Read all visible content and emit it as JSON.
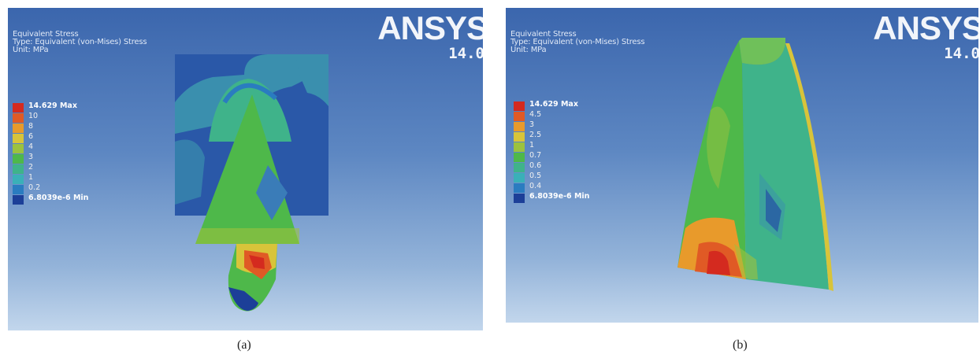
{
  "panels": [
    {
      "id": "a",
      "brand": "ANSYS",
      "version": "14.0",
      "info": [
        "Equivalent Stress",
        "Type: Equivalent (von-Mises) Stress",
        "Unit: MPa"
      ],
      "legend": [
        {
          "label": "14.629 Max",
          "color": "#d42a1f"
        },
        {
          "label": "10",
          "color": "#e05a25"
        },
        {
          "label": "8",
          "color": "#e89a2b"
        },
        {
          "label": "6",
          "color": "#d8c43a"
        },
        {
          "label": "4",
          "color": "#9cc23e"
        },
        {
          "label": "3",
          "color": "#4eb84a"
        },
        {
          "label": "2",
          "color": "#3fb38a"
        },
        {
          "label": "1",
          "color": "#3ab0b8"
        },
        {
          "label": "0.2",
          "color": "#2a7cc0"
        },
        {
          "label": "6.8039e-6 Min",
          "color": "#1c3f98"
        }
      ],
      "caption": "(a)"
    },
    {
      "id": "b",
      "brand": "ANSYS",
      "version": "14.0",
      "info": [
        "Equivalent Stress",
        "Type: Equivalent (von-Mises) Stress",
        "Unit: MPa"
      ],
      "legend": [
        {
          "label": "14.629 Max",
          "color": "#d42a1f"
        },
        {
          "label": "4.5",
          "color": "#e05a25"
        },
        {
          "label": "3",
          "color": "#e89a2b"
        },
        {
          "label": "2.5",
          "color": "#d8c43a"
        },
        {
          "label": "1",
          "color": "#9cc23e"
        },
        {
          "label": "0.7",
          "color": "#4eb84a"
        },
        {
          "label": "0.6",
          "color": "#3fb38a"
        },
        {
          "label": "0.5",
          "color": "#3ab0b8"
        },
        {
          "label": "0.4",
          "color": "#2a7cc0"
        },
        {
          "label": "6.8039e-6 Min",
          "color": "#1c3f98"
        }
      ],
      "caption": "(b)"
    }
  ]
}
